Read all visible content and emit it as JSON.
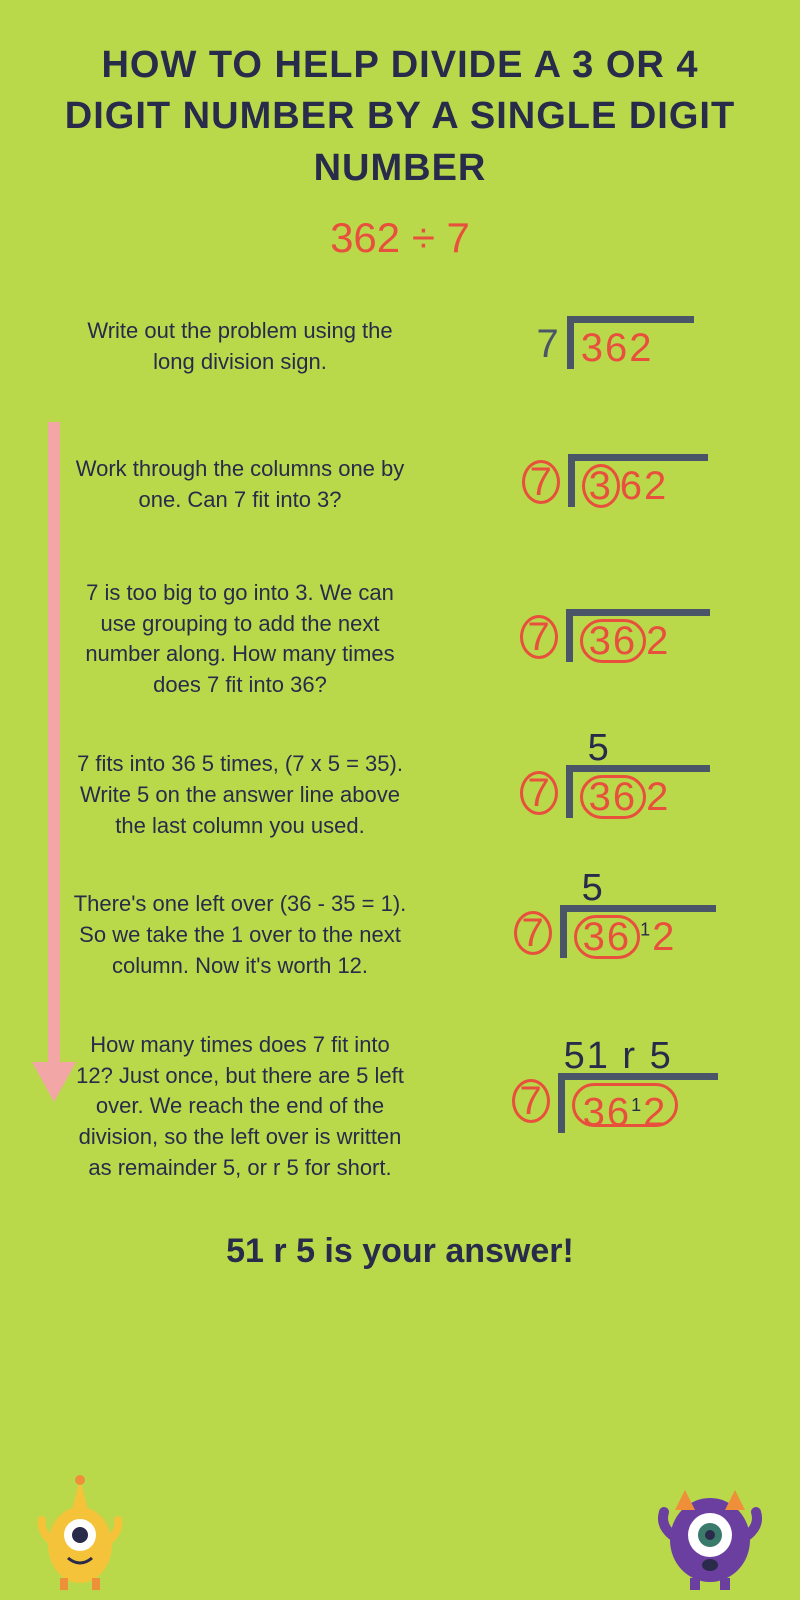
{
  "title": "HOW TO HELP DIVIDE A 3 OR 4 DIGIT NUMBER BY A SINGLE DIGIT NUMBER",
  "problem": "362 ÷ 7",
  "colors": {
    "background": "#b9d94a",
    "title_text": "#2a2a4a",
    "accent_red": "#e84f3d",
    "bracket": "#4a5568",
    "arrow": "#f3a6a6",
    "body_text": "#2a2a4a"
  },
  "typography": {
    "title_fontsize": 38,
    "problem_fontsize": 42,
    "step_fontsize": 22,
    "division_fontsize": 40,
    "answer_fontsize": 38,
    "final_fontsize": 34
  },
  "steps": [
    {
      "text": "Write out the problem using the long division sign.",
      "divisor": "7",
      "dividend": "362",
      "divisor_circled": false,
      "circle_mode": "none",
      "answer_line": "",
      "carry": ""
    },
    {
      "text": "Work through the columns one by one. Can 7 fit into 3?",
      "divisor": "7",
      "dividend": "362",
      "divisor_circled": true,
      "circle_mode": "first",
      "answer_line": "",
      "carry": ""
    },
    {
      "text": "7 is too big to go into 3. We can use grouping to add the next number along. How many times does 7 fit into 36?",
      "divisor": "7",
      "dividend": "362",
      "divisor_circled": true,
      "circle_mode": "first_two",
      "answer_line": "",
      "carry": ""
    },
    {
      "text": "7 fits into 36 5 times, (7 x 5 = 35). Write 5 on the answer line above the last column you used.",
      "divisor": "7",
      "dividend": "362",
      "divisor_circled": true,
      "circle_mode": "first_two",
      "answer_line": "5",
      "carry": ""
    },
    {
      "text": "There's one left over (36 - 35 = 1). So we take the 1 over to the next column. Now it's worth 12.",
      "divisor": "7",
      "dividend": "362",
      "divisor_circled": true,
      "circle_mode": "first_two",
      "answer_line": "5",
      "carry": "1"
    },
    {
      "text": "How many times does 7 fit into 12? Just once, but there are 5 left over. We reach the end of the division, so the left over is written as remainder 5, or r 5 for short.",
      "divisor": "7",
      "dividend": "362",
      "divisor_circled": true,
      "circle_mode": "all",
      "answer_line": "51 r 5",
      "carry": "1"
    }
  ],
  "final_answer": "51 r 5 is your answer!"
}
